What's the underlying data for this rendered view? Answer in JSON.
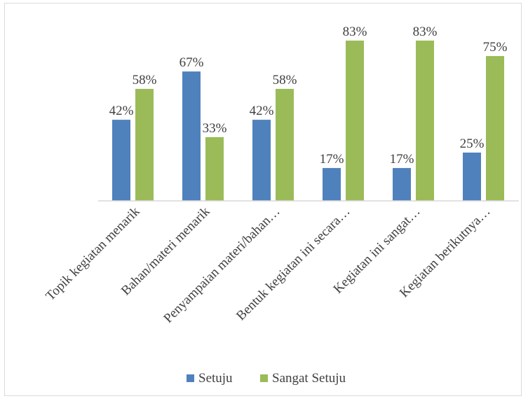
{
  "chart_data": {
    "type": "bar",
    "title": "",
    "xlabel": "",
    "ylabel": "",
    "ylim": [
      0,
      100
    ],
    "grid": false,
    "legend_position": "bottom",
    "categories": [
      "Topik kegiatan menarik",
      "Bahan/materi menarik",
      "Penyampaian materi/bahan…",
      "Bentuk kegiatan ini secara…",
      "Kegiatan ini sangat…",
      "Kegiatan berikutnya…"
    ],
    "series": [
      {
        "name": "Setuju",
        "color": "#4f81bd",
        "values": [
          42,
          67,
          42,
          17,
          17,
          25
        ],
        "labels": [
          "42%",
          "67%",
          "42%",
          "17%",
          "17%",
          "25%"
        ]
      },
      {
        "name": "Sangat Setuju",
        "color": "#9bbb59",
        "values": [
          58,
          33,
          58,
          83,
          83,
          75
        ],
        "labels": [
          "58%",
          "33%",
          "58%",
          "83%",
          "83%",
          "75%"
        ]
      }
    ]
  }
}
